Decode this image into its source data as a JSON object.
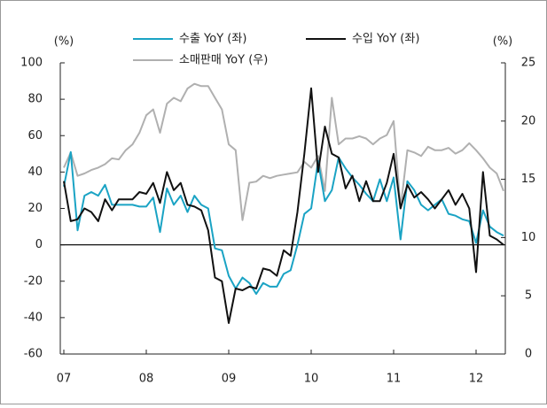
{
  "chart_data": {
    "type": "line",
    "y_label": "(%)",
    "y2_label": "(%)",
    "categories": [
      "07",
      null,
      null,
      null,
      null,
      null,
      null,
      null,
      null,
      null,
      null,
      null,
      "08",
      null,
      null,
      null,
      null,
      null,
      null,
      null,
      null,
      null,
      null,
      null,
      "09",
      null,
      null,
      null,
      null,
      null,
      null,
      null,
      null,
      null,
      null,
      null,
      "10",
      null,
      null,
      null,
      null,
      null,
      null,
      null,
      null,
      null,
      null,
      null,
      "11",
      null,
      null,
      null,
      null,
      null,
      null,
      null,
      null,
      null,
      null,
      null,
      "12",
      null,
      null,
      null,
      null
    ],
    "series": [
      {
        "name": "수출 YoY (좌)",
        "color": "#1aa3c4",
        "values": [
          32,
          51,
          8,
          27,
          29,
          27,
          33,
          22,
          22,
          22,
          22,
          21,
          21,
          26,
          7,
          31,
          22,
          27,
          18,
          27,
          22,
          20,
          -2,
          -3,
          -17,
          -24,
          -18,
          -21,
          -27,
          -21,
          -23,
          -23,
          -16,
          -14,
          0,
          17,
          20,
          46,
          24,
          30,
          48,
          42,
          37,
          33,
          28,
          24,
          36,
          24,
          37,
          3,
          35,
          30,
          22,
          19,
          22,
          25,
          17,
          16,
          14,
          13,
          1,
          19,
          10,
          7,
          5
        ]
      },
      {
        "name": "수입 YoY (좌)",
        "color": "#111111",
        "values": [
          35,
          13,
          14,
          20,
          18,
          13,
          25,
          19,
          25,
          25,
          25,
          29,
          28,
          34,
          23,
          40,
          30,
          34,
          22,
          21,
          19,
          8,
          -18,
          -20,
          -43,
          -24,
          -25,
          -23,
          -24,
          -13,
          -14,
          -17,
          -3,
          -6,
          18,
          50,
          86,
          40,
          65,
          50,
          48,
          31,
          38,
          24,
          35,
          24,
          24,
          34,
          50,
          20,
          33,
          26,
          29,
          25,
          20,
          25,
          30,
          22,
          28,
          20,
          -15,
          40,
          5,
          3,
          0
        ]
      },
      {
        "name": "소매판매 YoY (우)",
        "color": "#b0b0b0",
        "axis": "y2",
        "values": [
          16,
          17.3,
          15.3,
          15.5,
          15.8,
          16,
          16.3,
          16.8,
          16.7,
          17.5,
          18,
          19,
          20.5,
          21,
          19,
          21.5,
          22,
          21.7,
          22.8,
          23.2,
          23,
          23,
          22,
          21,
          18,
          17.5,
          11.5,
          14.7,
          14.8,
          15.3,
          15.1,
          15.3,
          15.4,
          15.5,
          15.6,
          16.5,
          16,
          17,
          14,
          22,
          18,
          18.5,
          18.5,
          18.7,
          18.5,
          18,
          18.5,
          18.8,
          20,
          12.5,
          17.5,
          17.3,
          17,
          17.8,
          17.5,
          17.5,
          17.7,
          17.2,
          17.5,
          18.1,
          17.5,
          16.8,
          16,
          15.5,
          14
        ]
      }
    ],
    "ylim": [
      -60,
      100
    ],
    "yticks": [
      -60,
      -40,
      -20,
      0,
      20,
      40,
      60,
      80,
      100
    ],
    "y2lim": [
      0,
      25
    ],
    "y2ticks": [
      0,
      5,
      10,
      15,
      20,
      25
    ]
  }
}
